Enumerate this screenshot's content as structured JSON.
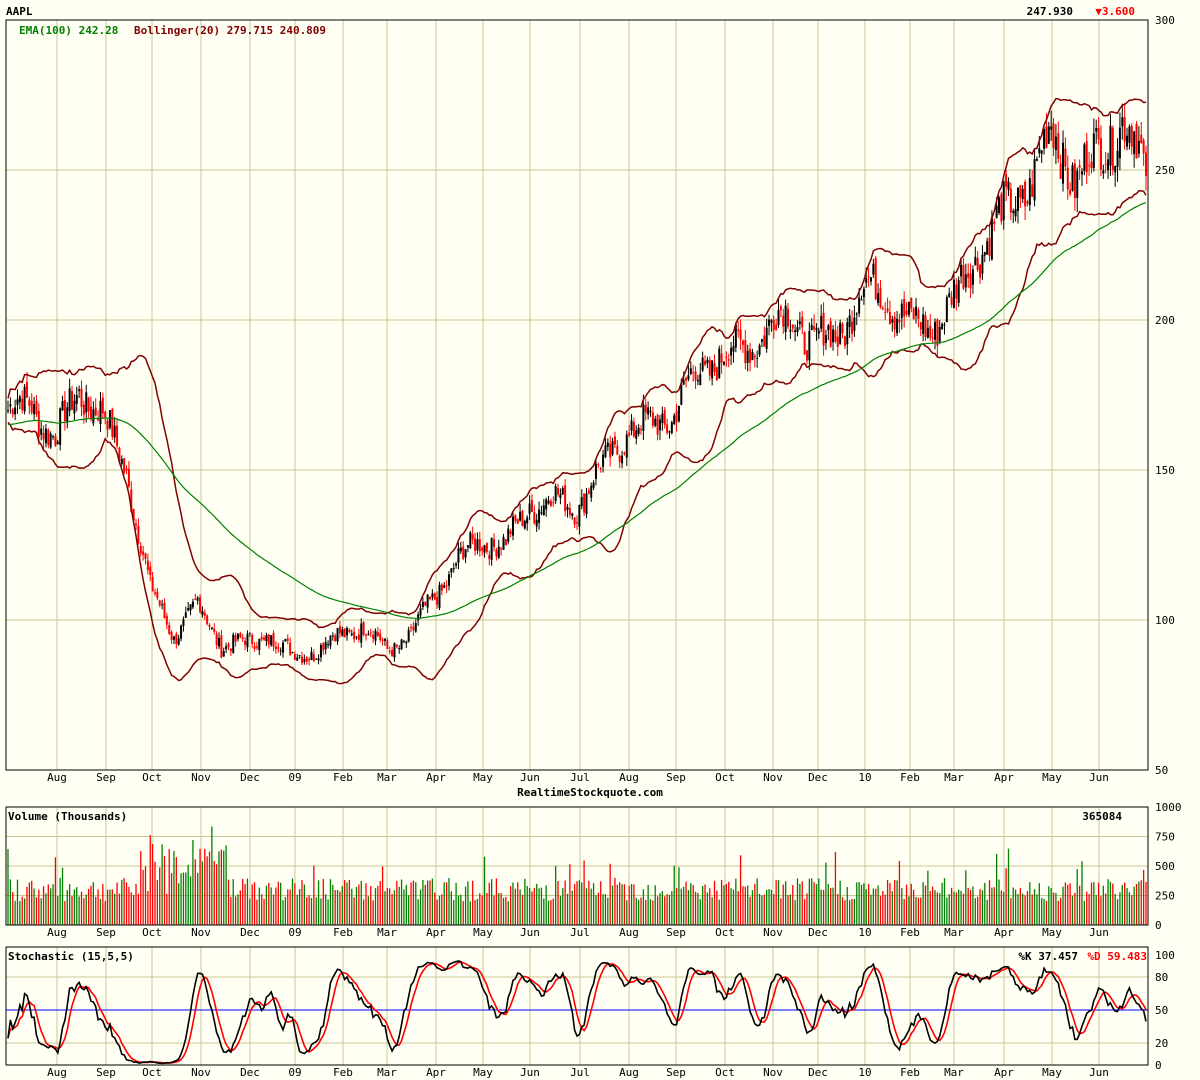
{
  "header": {
    "symbol": "AAPL",
    "last_price": "247.930",
    "change": "▼3.600",
    "ema_label": "EMA(100) 242.28",
    "bollinger_label": "Bollinger(20) 279.715 240.809",
    "watermark": "RealtimeStockquote.com"
  },
  "volume_panel": {
    "title": "Volume (Thousands)",
    "last_value": "365084",
    "ticks": [
      "1000",
      "750",
      "500",
      "250",
      "0"
    ]
  },
  "stochastic_panel": {
    "title": "Stochastic (15,5,5)",
    "k_label": "%K 37.457",
    "d_label": "%D 59.483",
    "ticks": [
      "100",
      "80",
      "50",
      "20",
      "0"
    ]
  },
  "colors": {
    "background": "#fffff4",
    "grid": "#c8c896",
    "up": "#000000",
    "down": "#ff0000",
    "ema": "#008000",
    "bollinger": "#800000",
    "stoch_k": "#000000",
    "stoch_d": "#ff0000",
    "midline": "#0000ff",
    "vol_up": "#008000",
    "vol_down": "#ff0000"
  },
  "chart_data": {
    "type": "candlestick",
    "x_ticks": [
      "Aug",
      "Sep",
      "Oct",
      "Nov",
      "Dec",
      "09",
      "Feb",
      "Mar",
      "Apr",
      "May",
      "Jun",
      "Jul",
      "Aug",
      "Sep",
      "Oct",
      "Nov",
      "Dec",
      "10",
      "Feb",
      "Mar",
      "Apr",
      "May",
      "Jun"
    ],
    "y_ticks": [
      "300",
      "250",
      "200",
      "150",
      "100",
      "50"
    ],
    "ylim": [
      50,
      300
    ],
    "grid": true,
    "approx_semimonthly_close": [
      170,
      172,
      160,
      177,
      168,
      150,
      110,
      95,
      105,
      92,
      92,
      95,
      88,
      90,
      95,
      98,
      90,
      95,
      108,
      120,
      127,
      125,
      138,
      140,
      138,
      150,
      162,
      165,
      168,
      182,
      188,
      190,
      197,
      202,
      192,
      195,
      210,
      210,
      198,
      198,
      208,
      225,
      235,
      245,
      262,
      248,
      255,
      268,
      248
    ],
    "ema_period": 100,
    "bollinger_period": 20,
    "last_close": 247.93
  }
}
